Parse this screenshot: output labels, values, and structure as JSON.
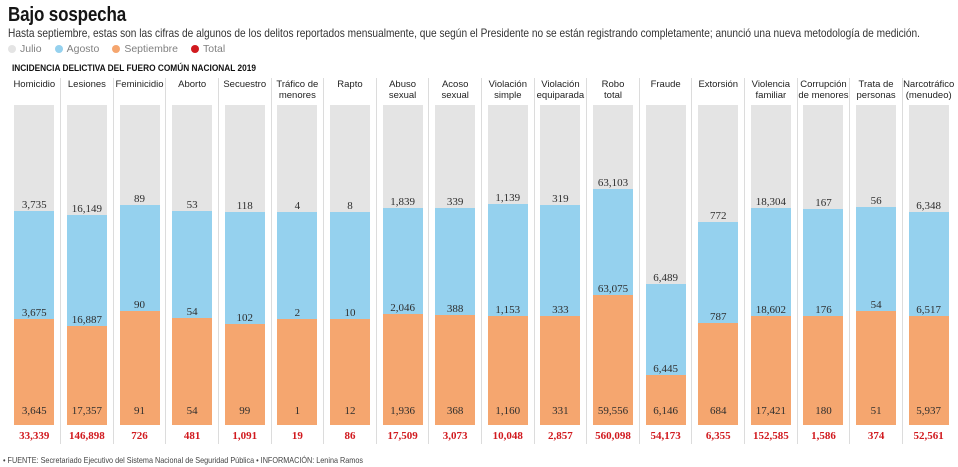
{
  "header": {
    "title": "Bajo sospecha",
    "subtitle": "Hasta septiembre, estas son las cifras de algunos de los delitos reportados mensualmente, que según el Presidente no se están registrando completamente; anunció una nueva metodología de medición."
  },
  "chart_data": {
    "type": "bar",
    "stacked": true,
    "grid": false,
    "legend_position": "top-left",
    "title": "INCIDENCIA DELICTIVA DEL FUERO COMÚN NACIONAL 2019",
    "categories": [
      "Homicidio",
      "Lesiones",
      "Feminicidio",
      "Aborto",
      "Secuestro",
      "Tráfico de\nmenores",
      "Rapto",
      "Abuso\nsexual",
      "Acoso\nsexual",
      "Violación\nsimple",
      "Violación\nequiparada",
      "Robo\ntotal",
      "Fraude",
      "Extorsión",
      "Violencia\nfamiliar",
      "Corrupción\nde menores",
      "Trata de\npersonas",
      "Narcotráfico\n(menudeo)"
    ],
    "series": [
      {
        "name": "Julio",
        "color": "#e4e4e4",
        "values": [
          3735,
          16149,
          89,
          53,
          118,
          4,
          8,
          1839,
          339,
          1139,
          319,
          63103,
          6489,
          772,
          18304,
          167,
          56,
          6348
        ]
      },
      {
        "name": "Agosto",
        "color": "#95d1ee",
        "values": [
          3675,
          16887,
          90,
          54,
          102,
          2,
          10,
          2046,
          388,
          1153,
          333,
          63075,
          6445,
          787,
          18602,
          176,
          54,
          6517
        ]
      },
      {
        "name": "Septiembre",
        "color": "#f5a66f",
        "values": [
          3645,
          17357,
          91,
          54,
          99,
          1,
          12,
          1936,
          368,
          1160,
          331,
          59556,
          6146,
          684,
          17421,
          180,
          51,
          5937
        ]
      },
      {
        "name": "Total",
        "color": "#d11a1f",
        "values": [
          33339,
          146898,
          726,
          481,
          1091,
          19,
          86,
          17509,
          3073,
          10048,
          2857,
          560098,
          54173,
          6355,
          152585,
          1586,
          374,
          52561
        ]
      }
    ]
  },
  "footer": {
    "credits": "• FUENTE: Secretariado Ejecutivo del Sistema Nacional de Seguridad Pública • INFORMACIÓN: Lenina Ramos"
  }
}
